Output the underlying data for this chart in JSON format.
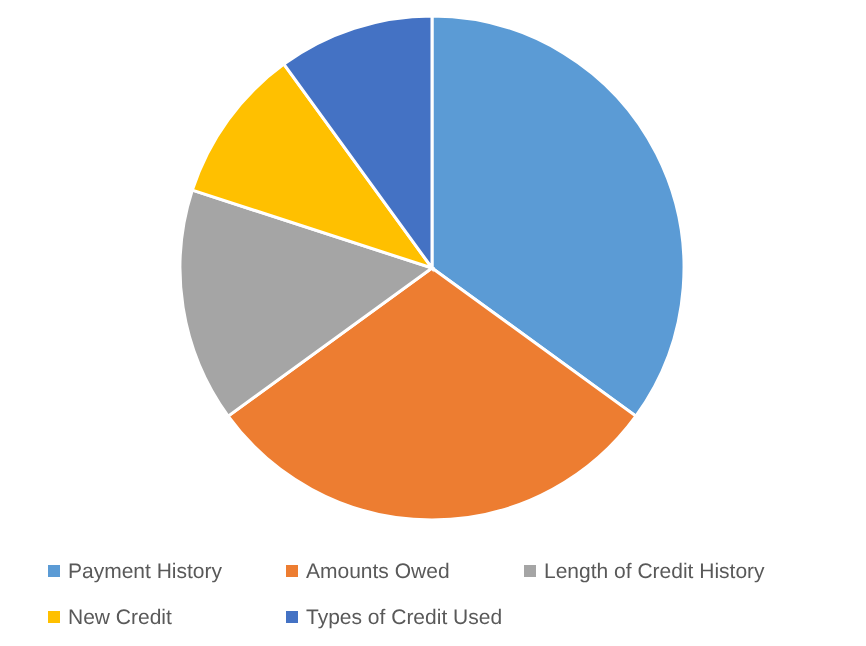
{
  "chart_data": {
    "type": "pie",
    "categories": [
      "Payment History",
      "Amounts Owed",
      "Length of Credit History",
      "New Credit",
      "Types of Credit Used"
    ],
    "values": [
      35,
      30,
      15,
      10,
      10
    ],
    "colors": [
      "#5b9bd5",
      "#ed7d31",
      "#a5a5a5",
      "#ffc000",
      "#4472c4"
    ],
    "legend": "bottom"
  }
}
